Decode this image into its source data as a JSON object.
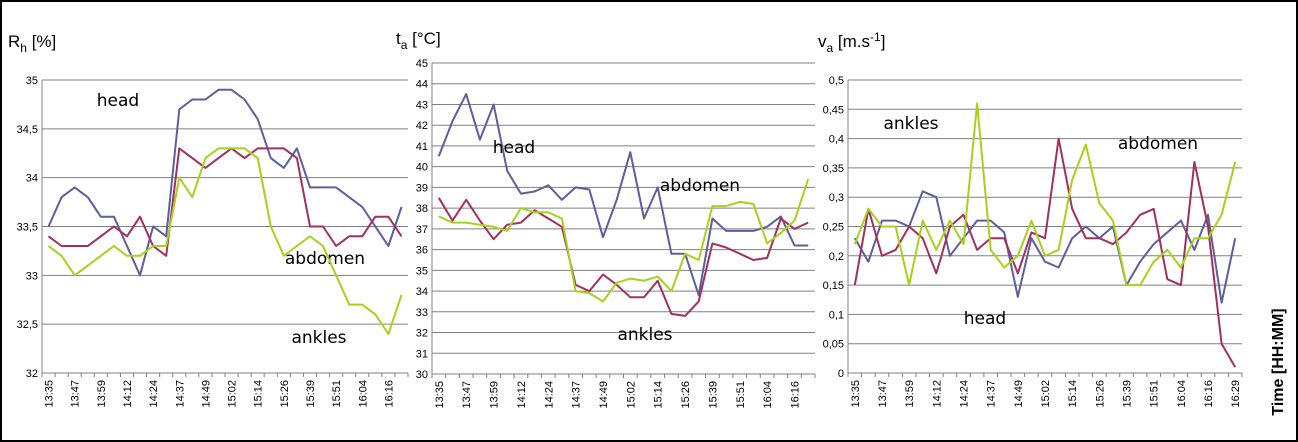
{
  "chart_data": [
    {
      "type": "line",
      "title": [
        {
          "text": "R"
        },
        {
          "text": "h",
          "shift": "sub"
        },
        {
          "text": " [%]"
        }
      ],
      "categories": [
        "13:35",
        null,
        "13:47",
        null,
        "13:59",
        null,
        "14:12",
        null,
        "14:24",
        null,
        "14:37",
        null,
        "14:49",
        null,
        "15:02",
        null,
        "15:14",
        null,
        "15:26",
        null,
        "15:39",
        null,
        "15:51",
        null,
        "16:04",
        null,
        "16:16",
        null
      ],
      "series": [
        {
          "name": "head",
          "color": "#5b5f9d",
          "values": [
            33.5,
            33.8,
            33.9,
            33.8,
            33.6,
            33.6,
            33.3,
            33.0,
            33.5,
            33.4,
            34.7,
            34.8,
            34.8,
            34.9,
            34.9,
            34.8,
            34.6,
            34.2,
            34.1,
            34.3,
            33.9,
            33.9,
            33.9,
            33.8,
            33.7,
            33.5,
            33.3,
            33.7
          ]
        },
        {
          "name": "abdomen",
          "color": "#a1305f",
          "values": [
            33.4,
            33.3,
            33.3,
            33.3,
            33.4,
            33.5,
            33.4,
            33.6,
            33.3,
            33.2,
            34.3,
            34.2,
            34.1,
            34.2,
            34.3,
            34.2,
            34.3,
            34.3,
            34.3,
            34.2,
            33.5,
            33.5,
            33.3,
            33.4,
            33.4,
            33.6,
            33.6,
            33.4
          ]
        },
        {
          "name": "ankles",
          "color": "#a6d21b",
          "values": [
            33.3,
            33.2,
            33.0,
            33.1,
            33.2,
            33.3,
            33.2,
            33.2,
            33.3,
            33.3,
            34.0,
            33.8,
            34.2,
            34.3,
            34.3,
            34.3,
            34.2,
            33.5,
            33.2,
            33.3,
            33.4,
            33.3,
            33.0,
            32.7,
            32.7,
            32.6,
            32.4,
            32.8
          ]
        }
      ],
      "ylim": [
        32,
        35
      ],
      "yticks": [
        32,
        {
          "value": 32.5,
          "label": "32,5"
        },
        33,
        {
          "value": 33.5,
          "label": "33,5"
        },
        34,
        {
          "value": 34.5,
          "label": "34,5"
        },
        35
      ],
      "grid": true
    },
    {
      "type": "line",
      "title": [
        {
          "text": "t"
        },
        {
          "text": "a",
          "shift": "sub"
        },
        {
          "text": " [°C]"
        }
      ],
      "categories": [
        "13:35",
        null,
        "13:47",
        null,
        "13:59",
        null,
        "14:12",
        null,
        "14:24",
        null,
        "14:37",
        null,
        "14:49",
        null,
        "15:02",
        null,
        "15:14",
        null,
        "15:26",
        null,
        "15:39",
        null,
        "15:51",
        null,
        "16:04",
        null,
        "16:16",
        null
      ],
      "series": [
        {
          "name": "head",
          "color": "#5b5f9d",
          "values": [
            40.5,
            42.2,
            43.5,
            41.3,
            43.0,
            39.8,
            38.7,
            38.8,
            39.1,
            38.4,
            39.0,
            38.9,
            36.6,
            38.4,
            40.7,
            37.5,
            39.0,
            35.8,
            35.8,
            33.8,
            37.5,
            36.9,
            36.9,
            36.9,
            37.1,
            37.6,
            36.2,
            36.2
          ]
        },
        {
          "name": "abdomen",
          "color": "#a1305f",
          "values": [
            38.5,
            37.4,
            38.4,
            37.4,
            36.5,
            37.2,
            37.3,
            37.9,
            37.5,
            37.1,
            34.3,
            34.0,
            34.8,
            34.3,
            33.7,
            33.7,
            34.5,
            32.9,
            32.8,
            33.5,
            36.3,
            36.1,
            35.8,
            35.5,
            35.6,
            37.5,
            37.0,
            37.3
          ]
        },
        {
          "name": "ankles",
          "color": "#a6d21b",
          "values": [
            37.6,
            37.3,
            37.3,
            37.2,
            37.1,
            36.9,
            38.0,
            37.8,
            37.8,
            37.5,
            34.0,
            33.9,
            33.5,
            34.4,
            34.6,
            34.5,
            34.7,
            34.0,
            35.8,
            35.5,
            38.1,
            38.1,
            38.3,
            38.2,
            36.3,
            36.8,
            37.4,
            39.4
          ]
        }
      ],
      "ylim": [
        30,
        45
      ],
      "yticks": [
        30,
        31,
        32,
        33,
        34,
        35,
        36,
        37,
        38,
        39,
        40,
        41,
        42,
        43,
        44,
        45
      ],
      "grid": true
    },
    {
      "type": "line",
      "title": [
        {
          "text": "v"
        },
        {
          "text": "a",
          "shift": "sub"
        },
        {
          "text": " [m.s"
        },
        {
          "text": "-1",
          "shift": "super"
        },
        {
          "text": "]"
        }
      ],
      "xlabel": "Time [HH:MM]",
      "categories": [
        "13:35",
        null,
        "13:47",
        null,
        "13:59",
        null,
        "14:12",
        null,
        "14:24",
        null,
        "14:37",
        null,
        "14:49",
        null,
        "15:02",
        null,
        "15:14",
        null,
        "15:26",
        null,
        "15:39",
        null,
        "15:51",
        null,
        "16:04",
        null,
        "16:16",
        null,
        "16:29"
      ],
      "series": [
        {
          "name": "head",
          "color": "#5b5f9d",
          "values": [
            0.23,
            0.19,
            0.26,
            0.26,
            0.25,
            0.31,
            0.3,
            0.2,
            0.23,
            0.26,
            0.26,
            0.24,
            0.13,
            0.23,
            0.19,
            0.18,
            0.23,
            0.25,
            0.23,
            0.25,
            0.15,
            0.19,
            0.22,
            0.24,
            0.26,
            0.21,
            0.27,
            0.12,
            0.23
          ]
        },
        {
          "name": "abdomen",
          "color": "#a1305f",
          "values": [
            0.15,
            0.28,
            0.2,
            0.21,
            0.25,
            0.23,
            0.17,
            0.25,
            0.27,
            0.21,
            0.23,
            0.23,
            0.17,
            0.24,
            0.23,
            0.4,
            0.28,
            0.23,
            0.23,
            0.22,
            0.24,
            0.27,
            0.28,
            0.16,
            0.15,
            0.36,
            0.25,
            0.05,
            0.01
          ]
        },
        {
          "name": "ankles",
          "color": "#a6d21b",
          "values": [
            0.22,
            0.28,
            0.25,
            0.25,
            0.15,
            0.26,
            0.21,
            0.26,
            0.22,
            0.46,
            0.21,
            0.18,
            0.2,
            0.26,
            0.2,
            0.21,
            0.33,
            0.39,
            0.29,
            0.26,
            0.15,
            0.15,
            0.19,
            0.21,
            0.18,
            0.23,
            0.23,
            0.27,
            0.36
          ]
        }
      ],
      "ylim": [
        0,
        0.5
      ],
      "yticks": [
        0,
        {
          "value": 0.05,
          "label": "0,05"
        },
        {
          "value": 0.1,
          "label": "0,1"
        },
        {
          "value": 0.15,
          "label": "0,15"
        },
        {
          "value": 0.2,
          "label": "0,2"
        },
        {
          "value": 0.25,
          "label": "0,25"
        },
        {
          "value": 0.3,
          "label": "0,3"
        },
        {
          "value": 0.35,
          "label": "0,35"
        },
        {
          "value": 0.4,
          "label": "0,4"
        },
        {
          "value": 0.45,
          "label": "0,45"
        },
        {
          "value": 0.5,
          "label": "0,5"
        }
      ],
      "grid": true
    }
  ]
}
